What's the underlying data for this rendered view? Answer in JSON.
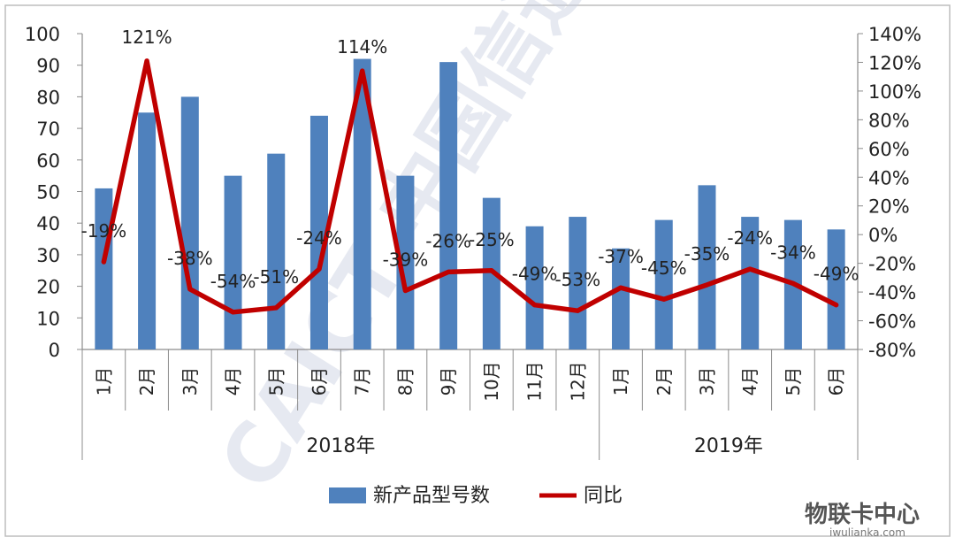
{
  "chart_data": {
    "type": "bar",
    "categories": [
      "1月",
      "2月",
      "3月",
      "4月",
      "5月",
      "6月",
      "7月",
      "8月",
      "9月",
      "10月",
      "11月",
      "12月",
      "1月",
      "2月",
      "3月",
      "4月",
      "5月",
      "6月"
    ],
    "groups": [
      {
        "label": "2018年",
        "count": 12
      },
      {
        "label": "2019年",
        "count": 6
      }
    ],
    "series": [
      {
        "name": "新产品型号数",
        "type": "bar",
        "axis": "left",
        "color": "#4f81bd",
        "values": [
          51,
          75,
          80,
          55,
          62,
          74,
          92,
          55,
          91,
          48,
          39,
          42,
          32,
          41,
          52,
          42,
          41,
          38
        ]
      },
      {
        "name": "同比",
        "type": "line",
        "axis": "right",
        "color": "#c00000",
        "values": [
          -19,
          121,
          -38,
          -54,
          -51,
          -24,
          114,
          -39,
          -26,
          -25,
          -49,
          -53,
          -37,
          -45,
          -35,
          -24,
          -34,
          -49
        ],
        "labels": [
          "-19%",
          "121%",
          "-38%",
          "-54%",
          "-51%",
          "-24%",
          "114%",
          "-39%",
          "-26%",
          "-25%",
          "-49%",
          "-53%",
          "-37%",
          "-45%",
          "-35%",
          "-24%",
          "-34%",
          "-49%"
        ]
      }
    ],
    "y_left": {
      "min": 0,
      "max": 100,
      "ticks": [
        "0",
        "10",
        "20",
        "30",
        "40",
        "50",
        "60",
        "70",
        "80",
        "90",
        "100"
      ]
    },
    "y_right": {
      "min": -80,
      "max": 140,
      "ticks": [
        "-80%",
        "-60%",
        "-40%",
        "-20%",
        "0%",
        "20%",
        "40%",
        "60%",
        "80%",
        "100%",
        "120%",
        "140%"
      ]
    },
    "grid": false,
    "legend_position": "bottom"
  },
  "watermark": {
    "text": "CAICT 中国信通院"
  },
  "corner_logo": {
    "text": "物联卡中心",
    "url": "iwulianka.com"
  }
}
